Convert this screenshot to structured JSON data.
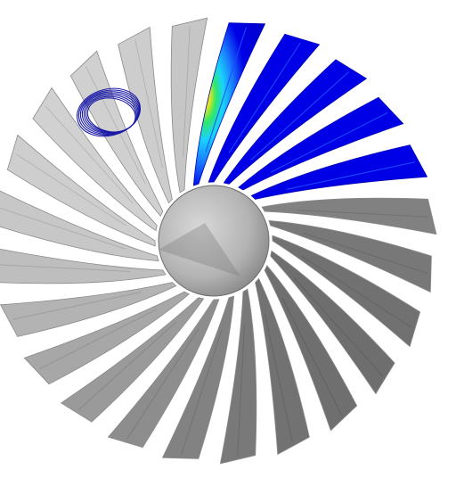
{
  "scene": {
    "subject": "fan-rotor-fea-render",
    "blade_count": 24,
    "highlighted_blades": 5,
    "colors": {
      "background": "#ffffff",
      "blade_light": "#d6d6d6",
      "blade_mid": "#a9a9a9",
      "blade_dark": "#6e6e6e",
      "hub": "#bdbdbd",
      "hub_shadow": "#7f7f7f",
      "stress_low": "#0000e6",
      "stress_mid1": "#1a7bff",
      "stress_mid2": "#19d2ff",
      "stress_mid3": "#2ee86b",
      "stress_high": "#f2e51b",
      "stress_peak": "#e41a1a",
      "ring_marker": "#1a1aa8"
    }
  }
}
